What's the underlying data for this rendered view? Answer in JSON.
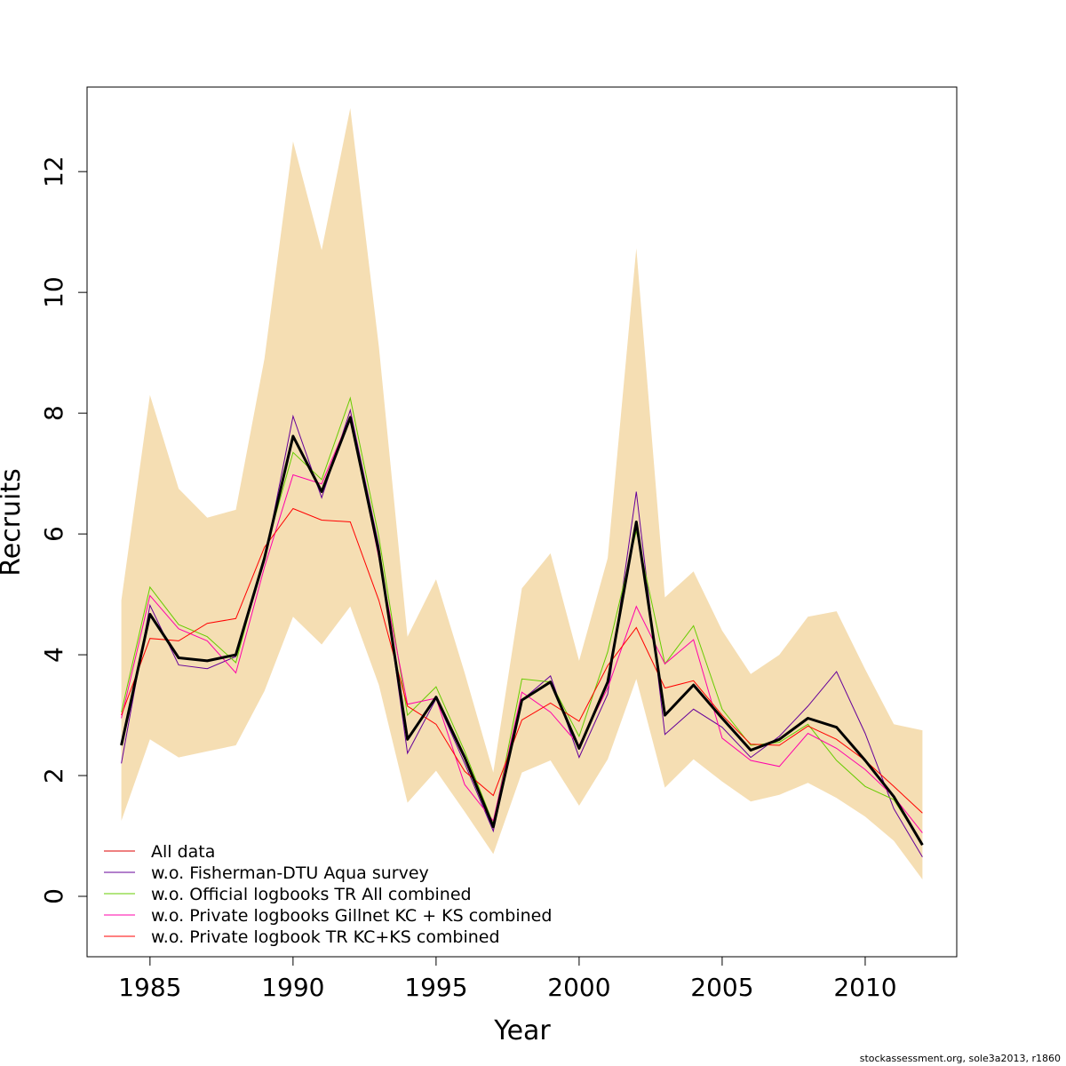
{
  "chart_data": {
    "type": "line",
    "xlabel": "Year",
    "ylabel": "Recruits",
    "xlim": [
      1982.8,
      2013.2
    ],
    "ylim": [
      -1.0,
      13.4
    ],
    "x_ticks": [
      1985,
      1990,
      1995,
      2000,
      2005,
      2010
    ],
    "y_ticks": [
      0,
      2,
      4,
      6,
      8,
      10,
      12
    ],
    "grid": false,
    "legend_position": "bottom-left",
    "x": [
      1984,
      1985,
      1986,
      1987,
      1988,
      1989,
      1990,
      1991,
      1992,
      1993,
      1994,
      1995,
      1996,
      1997,
      1998,
      1999,
      2000,
      2001,
      2002,
      2003,
      2004,
      2005,
      2006,
      2007,
      2008,
      2009,
      2010,
      2011,
      2012
    ],
    "band": {
      "color": "#f5deb3",
      "upper": [
        4.9,
        8.3,
        6.75,
        6.27,
        6.4,
        8.9,
        12.5,
        10.7,
        13.05,
        9.1,
        4.3,
        5.25,
        3.7,
        2.05,
        5.1,
        5.68,
        3.9,
        5.6,
        10.73,
        4.95,
        5.38,
        4.4,
        3.68,
        4.0,
        4.63,
        4.72,
        3.76,
        2.85,
        2.75
      ],
      "lower": [
        1.25,
        2.6,
        2.3,
        2.4,
        2.5,
        3.4,
        4.63,
        4.17,
        4.8,
        3.5,
        1.55,
        2.08,
        1.4,
        0.7,
        2.05,
        2.25,
        1.5,
        2.27,
        3.6,
        1.8,
        2.27,
        1.9,
        1.57,
        1.68,
        1.88,
        1.63,
        1.32,
        0.92,
        0.28
      ]
    },
    "main_series": {
      "name": "",
      "color": "#000000",
      "values": [
        2.5,
        4.67,
        3.95,
        3.9,
        4.0,
        5.6,
        7.62,
        6.7,
        7.93,
        5.7,
        2.6,
        3.3,
        2.3,
        1.15,
        3.25,
        3.55,
        2.45,
        3.55,
        6.2,
        3.0,
        3.5,
        2.95,
        2.42,
        2.6,
        2.95,
        2.8,
        2.25,
        1.65,
        0.85
      ]
    },
    "series": [
      {
        "name": "All data",
        "color": "#dd0000",
        "values": [
          2.5,
          4.67,
          3.95,
          3.9,
          4.0,
          5.6,
          7.62,
          6.7,
          7.93,
          5.7,
          2.6,
          3.3,
          2.3,
          1.15,
          3.25,
          3.55,
          2.45,
          3.55,
          6.2,
          3.0,
          3.5,
          2.95,
          2.42,
          2.6,
          2.95,
          2.8,
          2.25,
          1.65,
          0.85
        ]
      },
      {
        "name": "w.o. Fisherman-DTU Aqua survey",
        "color": "#660099",
        "values": [
          2.2,
          4.82,
          3.83,
          3.77,
          3.97,
          5.55,
          7.95,
          6.6,
          8.05,
          5.8,
          2.37,
          3.27,
          2.2,
          1.08,
          3.25,
          3.65,
          2.3,
          3.35,
          6.7,
          2.68,
          3.1,
          2.8,
          2.3,
          2.65,
          3.15,
          3.72,
          2.7,
          1.45,
          0.65
        ]
      },
      {
        "name": "w.o. Official logbooks TR All combined",
        "color": "#66cc00",
        "values": [
          3.05,
          5.12,
          4.5,
          4.3,
          3.87,
          5.65,
          7.35,
          6.9,
          8.25,
          5.95,
          3.0,
          3.47,
          2.4,
          1.2,
          3.6,
          3.55,
          2.65,
          4.05,
          6.05,
          3.85,
          4.48,
          3.1,
          2.5,
          2.55,
          2.85,
          2.25,
          1.82,
          1.6,
          0.85
        ]
      },
      {
        "name": "w.o. Private logbooks Gillnet KC + KS combined",
        "color": "#ff00aa",
        "values": [
          2.95,
          4.98,
          4.43,
          4.23,
          3.7,
          5.45,
          6.98,
          6.83,
          7.95,
          5.6,
          3.18,
          3.28,
          1.85,
          1.25,
          3.38,
          3.05,
          2.5,
          3.45,
          4.8,
          3.85,
          4.25,
          2.62,
          2.25,
          2.15,
          2.7,
          2.45,
          2.1,
          1.65,
          1.05
        ]
      },
      {
        "name": "w.o. Private logbook TR KC+KS combined",
        "color": "#ff0000",
        "values": [
          3.0,
          4.27,
          4.23,
          4.52,
          4.6,
          5.78,
          6.42,
          6.23,
          6.2,
          4.9,
          3.15,
          2.85,
          2.07,
          1.67,
          2.92,
          3.2,
          2.9,
          3.82,
          4.45,
          3.45,
          3.57,
          3.0,
          2.52,
          2.5,
          2.82,
          2.6,
          2.25,
          1.82,
          1.38
        ]
      }
    ]
  },
  "footer": "stockassessment.org, sole3a2013, r1860"
}
